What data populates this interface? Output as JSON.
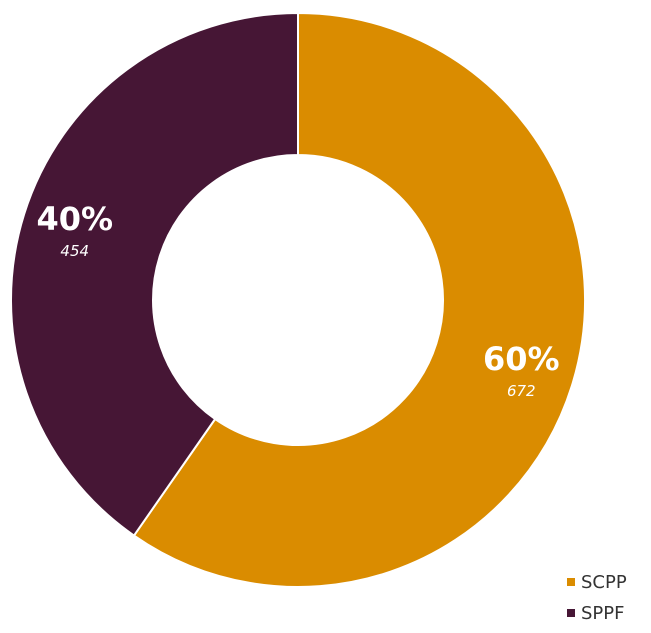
{
  "chart_data": {
    "type": "pie",
    "variant": "donut",
    "categories": [
      "SCPP",
      "SPPF"
    ],
    "values": [
      672,
      454
    ],
    "percent_labels": [
      "60%",
      "40%"
    ],
    "value_labels": [
      "672",
      "454"
    ],
    "colors": [
      "#DA8C00",
      "#461635"
    ],
    "legend_position": "bottom-right",
    "start_angle": "12 o'clock",
    "direction": "clockwise"
  }
}
